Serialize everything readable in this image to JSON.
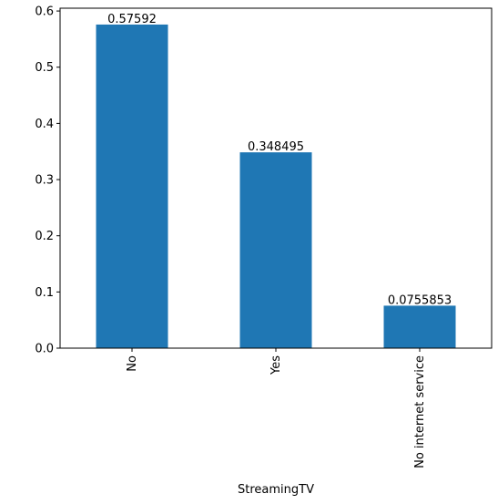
{
  "chart_data": {
    "type": "bar",
    "categories": [
      "No",
      "Yes",
      "No internet service"
    ],
    "values": [
      0.57592,
      0.348495,
      0.0755853
    ],
    "data_labels": [
      "0.57592",
      "0.348495",
      "0.0755853"
    ],
    "xlabel": "StreamingTV",
    "ylabel": "",
    "ylim": [
      0,
      0.605
    ],
    "yticks": [
      0.0,
      0.1,
      0.2,
      0.3,
      0.4,
      0.5,
      0.6
    ],
    "ytick_labels": [
      "0.0",
      "0.1",
      "0.2",
      "0.3",
      "0.4",
      "0.5",
      "0.6"
    ],
    "grid": false,
    "bar_color": "#1f77b4"
  }
}
